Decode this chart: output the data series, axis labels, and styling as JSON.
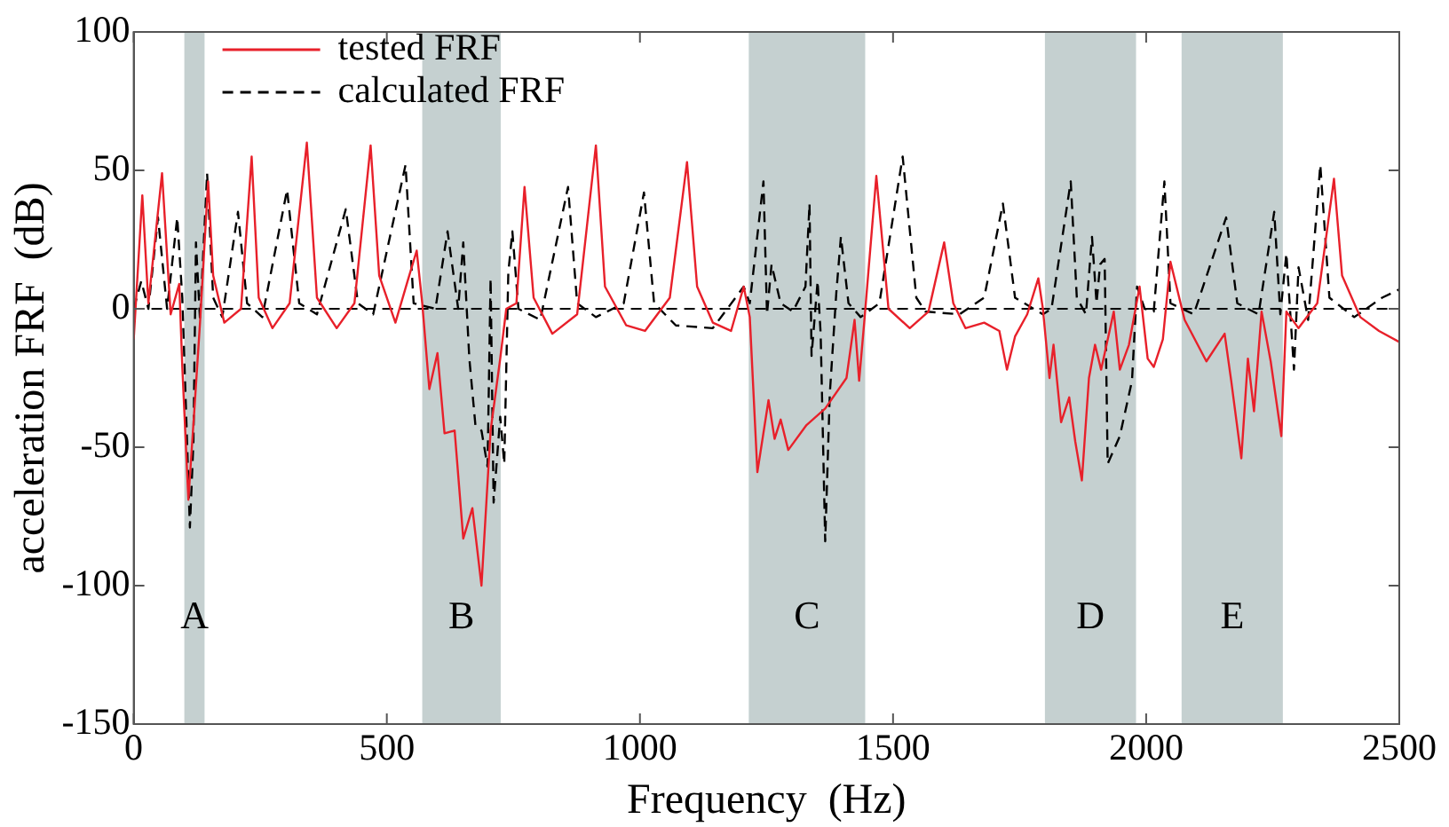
{
  "chart_data": {
    "type": "line",
    "xlabel": "Frequency  (Hz)",
    "ylabel": "acceleration FRF  (dB)",
    "xlim": [
      0,
      2500
    ],
    "ylim": [
      -150,
      100
    ],
    "xticks": [
      0,
      500,
      1000,
      1500,
      2000,
      2500
    ],
    "yticks": [
      -150,
      -100,
      -50,
      0,
      50,
      100
    ],
    "grid": false,
    "legend": "top left",
    "marker": "none",
    "bands": [
      {
        "axis": "x",
        "from": 100,
        "to": 140,
        "label": "A",
        "color": "#c5d0d0"
      },
      {
        "axis": "x",
        "from": 570,
        "to": 725,
        "label": "B",
        "color": "#c5d0d0"
      },
      {
        "axis": "x",
        "from": 1215,
        "to": 1445,
        "label": "C",
        "color": "#c5d0d0"
      },
      {
        "axis": "x",
        "from": 1800,
        "to": 1980,
        "label": "D",
        "color": "#c5d0d0"
      },
      {
        "axis": "x",
        "from": 2070,
        "to": 2270,
        "label": "E",
        "color": "#c5d0d0"
      }
    ],
    "ref_lines": [
      {
        "axis": "y",
        "value": 0,
        "color": "#000000",
        "line_style": "dashed"
      }
    ],
    "series": [
      {
        "name": "tested FRF",
        "color": "#e8202a",
        "line_style": "solid",
        "x": [
          0,
          17,
          29,
          56,
          73,
          90,
          96,
          108,
          120,
          131,
          147,
          157,
          179,
          212,
          233,
          247,
          274,
          308,
          342,
          362,
          401,
          436,
          468,
          485,
          517,
          541,
          559,
          570,
          584,
          600,
          614,
          634,
          651,
          669,
          687,
          705,
          724,
          736,
          756,
          772,
          790,
          827,
          876,
          913,
          931,
          973,
          1010,
          1059,
          1093,
          1113,
          1144,
          1180,
          1205,
          1217,
          1232,
          1254,
          1266,
          1278,
          1293,
          1329,
          1366,
          1408,
          1424,
          1433,
          1443,
          1467,
          1491,
          1533,
          1570,
          1601,
          1619,
          1643,
          1680,
          1710,
          1725,
          1741,
          1765,
          1787,
          1796,
          1809,
          1817,
          1832,
          1848,
          1860,
          1873,
          1887,
          1899,
          1911,
          1936,
          1948,
          1966,
          1987,
          2003,
          2015,
          2033,
          2048,
          2076,
          2119,
          2155,
          2168,
          2188,
          2201,
          2213,
          2228,
          2246,
          2267,
          2277,
          2301,
          2338,
          2371,
          2387,
          2423,
          2460,
          2500
        ],
        "values": [
          -11,
          41,
          2,
          49,
          -2,
          9,
          -21,
          -69,
          -36,
          -5,
          46,
          12,
          -5,
          0,
          55,
          4,
          -7,
          2,
          60,
          4,
          -7,
          2,
          59,
          12,
          -5,
          10,
          21,
          2,
          -29,
          -16,
          -45,
          -44,
          -83,
          -72,
          -100,
          -44,
          -18,
          0,
          2,
          44,
          4,
          -9,
          -2,
          59,
          8,
          -6,
          -8,
          4,
          53,
          8,
          -5,
          -8,
          8,
          -3,
          -59,
          -33,
          -47,
          -40,
          -51,
          -42,
          -36,
          -25,
          -4,
          -26,
          -5,
          48,
          0,
          -7,
          -1,
          24,
          2,
          -7,
          -5,
          -8,
          -22,
          -10,
          -2,
          11,
          0,
          -25,
          -13,
          -41,
          -32,
          -48,
          -62,
          -25,
          -13,
          -22,
          -1,
          -22,
          -13,
          8,
          -18,
          -21,
          -11,
          17,
          -4,
          -19,
          -9,
          -26,
          -54,
          -18,
          -37,
          -1,
          -19,
          -46,
          -1,
          -7,
          2,
          47,
          12,
          -3,
          -8,
          -12
        ]
      },
      {
        "name": "calculated FRF",
        "color": "#000000",
        "line_style": "dashed",
        "x": [
          0,
          15,
          29,
          48,
          66,
          86,
          96,
          111,
          118,
          123,
          131,
          145,
          157,
          175,
          206,
          224,
          254,
          303,
          327,
          362,
          419,
          443,
          473,
          537,
          553,
          596,
          620,
          641,
          651,
          663,
          675,
          687,
          699,
          705,
          711,
          724,
          732,
          740,
          748,
          760,
          803,
          858,
          876,
          913,
          968,
          1008,
          1028,
          1071,
          1144,
          1205,
          1217,
          1244,
          1251,
          1260,
          1278,
          1302,
          1327,
          1335,
          1339,
          1351,
          1357,
          1366,
          1375,
          1388,
          1397,
          1412,
          1436,
          1473,
          1519,
          1546,
          1564,
          1631,
          1680,
          1717,
          1741,
          1796,
          1813,
          1851,
          1863,
          1881,
          1893,
          1902,
          1909,
          1918,
          1924,
          1948,
          1972,
          1982,
          1997,
          2015,
          2036,
          2048,
          2094,
          2158,
          2180,
          2222,
          2253,
          2265,
          2277,
          2292,
          2301,
          2320,
          2344,
          2362,
          2411,
          2466,
          2500
        ],
        "values": [
          0,
          10,
          0,
          33,
          0,
          33,
          4,
          -79,
          -48,
          24,
          -4,
          49,
          4,
          -3,
          35,
          2,
          -3,
          43,
          2,
          -2,
          36,
          2,
          -2,
          52,
          2,
          0,
          28,
          0,
          24,
          -18,
          -42,
          -44,
          -57,
          11,
          -70,
          -39,
          -56,
          13,
          28,
          0,
          -4,
          44,
          2,
          -3,
          2,
          42,
          2,
          -6,
          -7,
          8,
          2,
          46,
          -2,
          16,
          2,
          -1,
          8,
          38,
          -17,
          10,
          -9,
          -84,
          -31,
          6,
          26,
          2,
          -3,
          2,
          55,
          4,
          -1,
          -2,
          4,
          38,
          4,
          -2,
          0,
          46,
          4,
          -2,
          26,
          2,
          16,
          18,
          -56,
          -46,
          -26,
          8,
          0,
          -1,
          46,
          2,
          -2,
          33,
          2,
          -2,
          35,
          -2,
          20,
          -22,
          15,
          -4,
          52,
          4,
          -3,
          4,
          7
        ]
      }
    ]
  }
}
